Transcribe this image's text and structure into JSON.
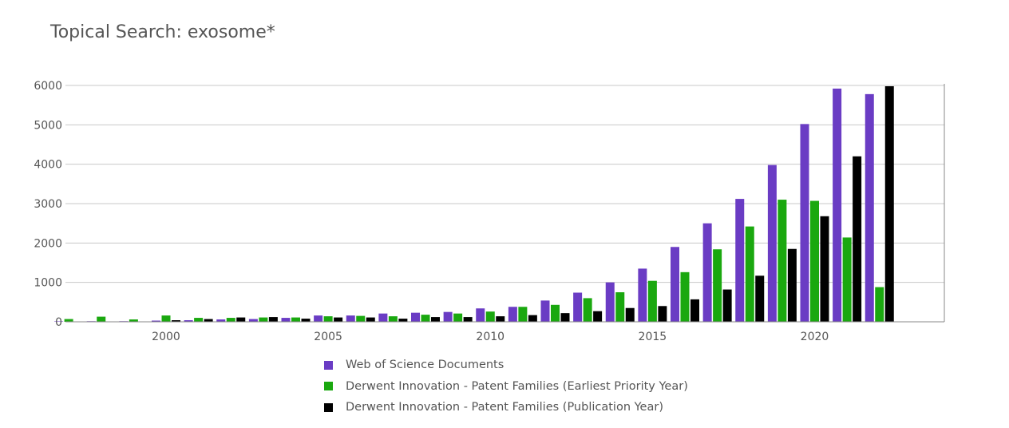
{
  "chart_data": {
    "type": "bar",
    "title": "Topical Search: exosome*",
    "x": [
      1997,
      1998,
      1999,
      2000,
      2001,
      2002,
      2003,
      2004,
      2005,
      2006,
      2007,
      2008,
      2009,
      2010,
      2011,
      2012,
      2013,
      2014,
      2015,
      2016,
      2017,
      2018,
      2019,
      2020,
      2021,
      2022
    ],
    "xticks": [
      2000,
      2005,
      2010,
      2015,
      2020
    ],
    "yticks": [
      0,
      1000,
      2000,
      3000,
      4000,
      5000,
      6000
    ],
    "ylim": [
      0,
      6000
    ],
    "grid": true,
    "legend_position": "bottom",
    "series": [
      {
        "name": "Web of Science Documents",
        "color": "#6a3cc4",
        "values": [
          10,
          15,
          15,
          30,
          40,
          60,
          70,
          100,
          160,
          160,
          210,
          230,
          250,
          340,
          380,
          540,
          740,
          1000,
          1350,
          1900,
          2500,
          3120,
          3980,
          5020,
          5920,
          5780
        ]
      },
      {
        "name": "Derwent Innovation - Patent Families (Earliest Priority Year)",
        "color": "#1aa80f",
        "values": [
          70,
          130,
          60,
          160,
          100,
          100,
          110,
          110,
          140,
          150,
          140,
          180,
          210,
          260,
          380,
          430,
          600,
          750,
          1040,
          1260,
          1840,
          2420,
          3100,
          3070,
          2140,
          880
        ]
      },
      {
        "name": "Derwent Innovation - Patent Families (Publication Year)",
        "color": "#000000",
        "values": [
          0,
          0,
          0,
          40,
          70,
          110,
          120,
          80,
          110,
          110,
          80,
          120,
          120,
          140,
          170,
          220,
          270,
          350,
          400,
          570,
          820,
          1170,
          1850,
          2680,
          4200,
          5980
        ]
      }
    ]
  }
}
